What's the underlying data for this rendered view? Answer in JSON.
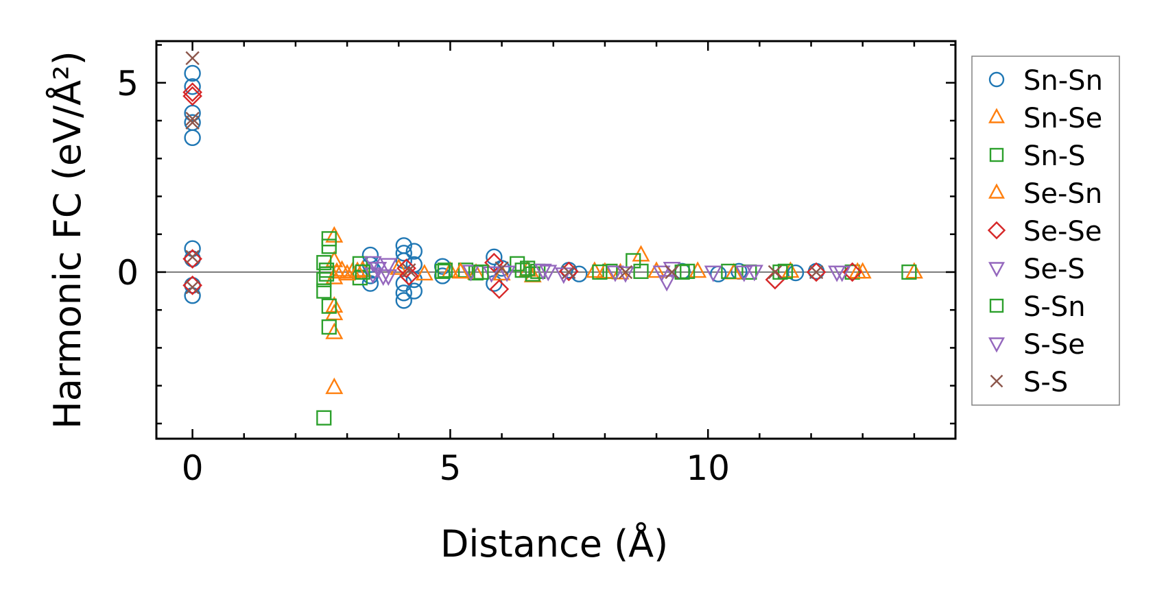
{
  "chart_data": {
    "type": "scatter",
    "xlabel": "Distance (Å)",
    "ylabel": "Harmonic FC (eV/Å²)",
    "xlim": [
      -0.7,
      14.8
    ],
    "ylim": [
      -4.4,
      6.1
    ],
    "xticks": [
      0,
      5,
      10
    ],
    "xtick_labels": [
      "0",
      "5",
      "10"
    ],
    "yticks": [
      0,
      5
    ],
    "ytick_labels": [
      "0",
      "5"
    ],
    "x_minor_step": 1,
    "y_minor_step": 1,
    "grid": false,
    "zero_line": true,
    "legend_position": "right-outside",
    "series": [
      {
        "name": "Sn-Sn",
        "marker": "circle",
        "color": "#1f77b4",
        "points": [
          [
            0,
            5.25
          ],
          [
            0,
            4.9
          ],
          [
            0,
            4.2
          ],
          [
            0,
            3.95
          ],
          [
            0,
            3.55
          ],
          [
            0,
            0.62
          ],
          [
            0,
            0.35
          ],
          [
            0,
            -0.35
          ],
          [
            0,
            -0.62
          ],
          [
            3.45,
            0.45
          ],
          [
            3.45,
            0.2
          ],
          [
            3.45,
            -0.1
          ],
          [
            3.45,
            -0.3
          ],
          [
            3.5,
            0.05
          ],
          [
            4.1,
            0.7
          ],
          [
            4.1,
            0.5
          ],
          [
            4.1,
            0.3
          ],
          [
            4.1,
            -0.3
          ],
          [
            4.1,
            -0.55
          ],
          [
            4.1,
            -0.75
          ],
          [
            4.3,
            0.55
          ],
          [
            4.3,
            0.2
          ],
          [
            4.3,
            -0.2
          ],
          [
            4.3,
            -0.5
          ],
          [
            4.85,
            0.15
          ],
          [
            4.85,
            -0.1
          ],
          [
            5.85,
            0.4
          ],
          [
            5.85,
            -0.3
          ],
          [
            6.0,
            0.1
          ],
          [
            7.3,
            0.05
          ],
          [
            7.5,
            -0.05
          ],
          [
            9.5,
            0.02
          ],
          [
            10.2,
            -0.05
          ],
          [
            10.6,
            0.02
          ],
          [
            11.7,
            -0.02
          ],
          [
            12.1,
            0.02
          ]
        ]
      },
      {
        "name": "Sn-Se",
        "marker": "triangle-up",
        "color": "#ff7f0e",
        "points": [
          [
            2.75,
            0.95
          ],
          [
            2.75,
            0.3
          ],
          [
            2.75,
            -0.15
          ],
          [
            2.75,
            -0.9
          ],
          [
            2.75,
            -1.1
          ],
          [
            2.75,
            -1.6
          ],
          [
            2.75,
            -3.05
          ],
          [
            2.9,
            0.05
          ],
          [
            3.1,
            0.0
          ],
          [
            3.3,
            0.05
          ],
          [
            4.0,
            0.1
          ],
          [
            4.5,
            -0.05
          ],
          [
            5.0,
            0.02
          ],
          [
            5.5,
            -0.03
          ],
          [
            6.5,
            0.05
          ],
          [
            6.6,
            -0.1
          ],
          [
            7.8,
            0.02
          ],
          [
            8.3,
            -0.02
          ],
          [
            8.7,
            0.45
          ],
          [
            9.8,
            0.02
          ],
          [
            10.5,
            -0.02
          ],
          [
            11.6,
            0.02
          ],
          [
            13.0,
            0.0
          ],
          [
            14.0,
            0.0
          ]
        ]
      },
      {
        "name": "Sn-S",
        "marker": "square",
        "color": "#2ca02c",
        "points": [
          [
            2.55,
            0.25
          ],
          [
            2.55,
            -0.2
          ],
          [
            2.55,
            -0.5
          ],
          [
            2.55,
            -3.85
          ],
          [
            2.65,
            0.88
          ],
          [
            2.65,
            0.68
          ],
          [
            2.65,
            -0.9
          ],
          [
            2.65,
            -1.45
          ],
          [
            3.25,
            0.22
          ],
          [
            3.25,
            -0.15
          ],
          [
            4.85,
            0.02
          ],
          [
            5.3,
            0.05
          ],
          [
            5.5,
            -0.02
          ],
          [
            6.3,
            0.22
          ],
          [
            6.5,
            0.1
          ],
          [
            6.6,
            -0.05
          ],
          [
            6.7,
            0.02
          ],
          [
            8.1,
            0.02
          ],
          [
            8.55,
            0.3
          ],
          [
            8.7,
            0.02
          ],
          [
            9.6,
            0.02
          ],
          [
            10.4,
            0.02
          ],
          [
            10.8,
            0.0
          ],
          [
            11.5,
            0.02
          ],
          [
            12.8,
            0.0
          ],
          [
            13.9,
            0.0
          ]
        ]
      },
      {
        "name": "Se-Sn",
        "marker": "triangle-up",
        "color": "#ff7f0e",
        "points": [
          [
            2.8,
            0.0
          ],
          [
            3.0,
            -0.05
          ],
          [
            3.2,
            0.02
          ],
          [
            5.2,
            0.0
          ],
          [
            6.0,
            -0.05
          ],
          [
            8.0,
            0.0
          ],
          [
            9.0,
            0.02
          ],
          [
            12.9,
            0.0
          ]
        ]
      },
      {
        "name": "Se-Se",
        "marker": "diamond",
        "color": "#d62728",
        "points": [
          [
            0,
            4.75
          ],
          [
            0,
            4.65
          ],
          [
            0,
            0.35
          ],
          [
            0,
            -0.35
          ],
          [
            4.15,
            0.1
          ],
          [
            4.2,
            -0.1
          ],
          [
            5.85,
            0.25
          ],
          [
            5.95,
            -0.45
          ],
          [
            7.3,
            0.02
          ],
          [
            11.3,
            -0.2
          ],
          [
            12.1,
            0.0
          ],
          [
            12.8,
            0.0
          ]
        ]
      },
      {
        "name": "Se-S",
        "marker": "triangle-down",
        "color": "#9467bd",
        "points": [
          [
            3.5,
            0.25
          ],
          [
            3.5,
            -0.05
          ],
          [
            3.8,
            0.2
          ],
          [
            3.8,
            -0.1
          ],
          [
            5.4,
            0.02
          ],
          [
            5.8,
            -0.02
          ],
          [
            6.8,
            0.05
          ],
          [
            7.2,
            -0.05
          ],
          [
            8.2,
            0.0
          ],
          [
            9.2,
            -0.25
          ],
          [
            9.3,
            0.1
          ],
          [
            10.1,
            0.0
          ],
          [
            10.9,
            0.02
          ],
          [
            12.6,
            0.0
          ]
        ]
      },
      {
        "name": "S-Sn",
        "marker": "square",
        "color": "#2ca02c",
        "points": [
          [
            2.6,
            0.05
          ],
          [
            2.6,
            -0.05
          ],
          [
            3.3,
            0.0
          ],
          [
            4.9,
            0.05
          ],
          [
            5.6,
            0.0
          ],
          [
            6.4,
            0.05
          ],
          [
            7.9,
            0.0
          ],
          [
            9.5,
            0.0
          ],
          [
            11.4,
            0.0
          ]
        ]
      },
      {
        "name": "S-Se",
        "marker": "triangle-down",
        "color": "#9467bd",
        "points": [
          [
            3.6,
            0.1
          ],
          [
            3.7,
            -0.1
          ],
          [
            6.1,
            0.0
          ],
          [
            6.9,
            0.02
          ],
          [
            8.4,
            -0.02
          ],
          [
            9.1,
            0.0
          ],
          [
            10.7,
            0.0
          ],
          [
            12.5,
            0.0
          ]
        ]
      },
      {
        "name": "S-S",
        "marker": "x",
        "color": "#8c564b",
        "points": [
          [
            0,
            5.65
          ],
          [
            0,
            4.05
          ],
          [
            0,
            3.95
          ],
          [
            0,
            0.4
          ],
          [
            0,
            -0.4
          ],
          [
            4.2,
            0.05
          ],
          [
            6.0,
            0.1
          ],
          [
            7.3,
            0.0
          ],
          [
            8.4,
            0.0
          ],
          [
            9.3,
            0.0
          ],
          [
            11.3,
            0.0
          ],
          [
            12.1,
            0.0
          ]
        ]
      }
    ]
  }
}
